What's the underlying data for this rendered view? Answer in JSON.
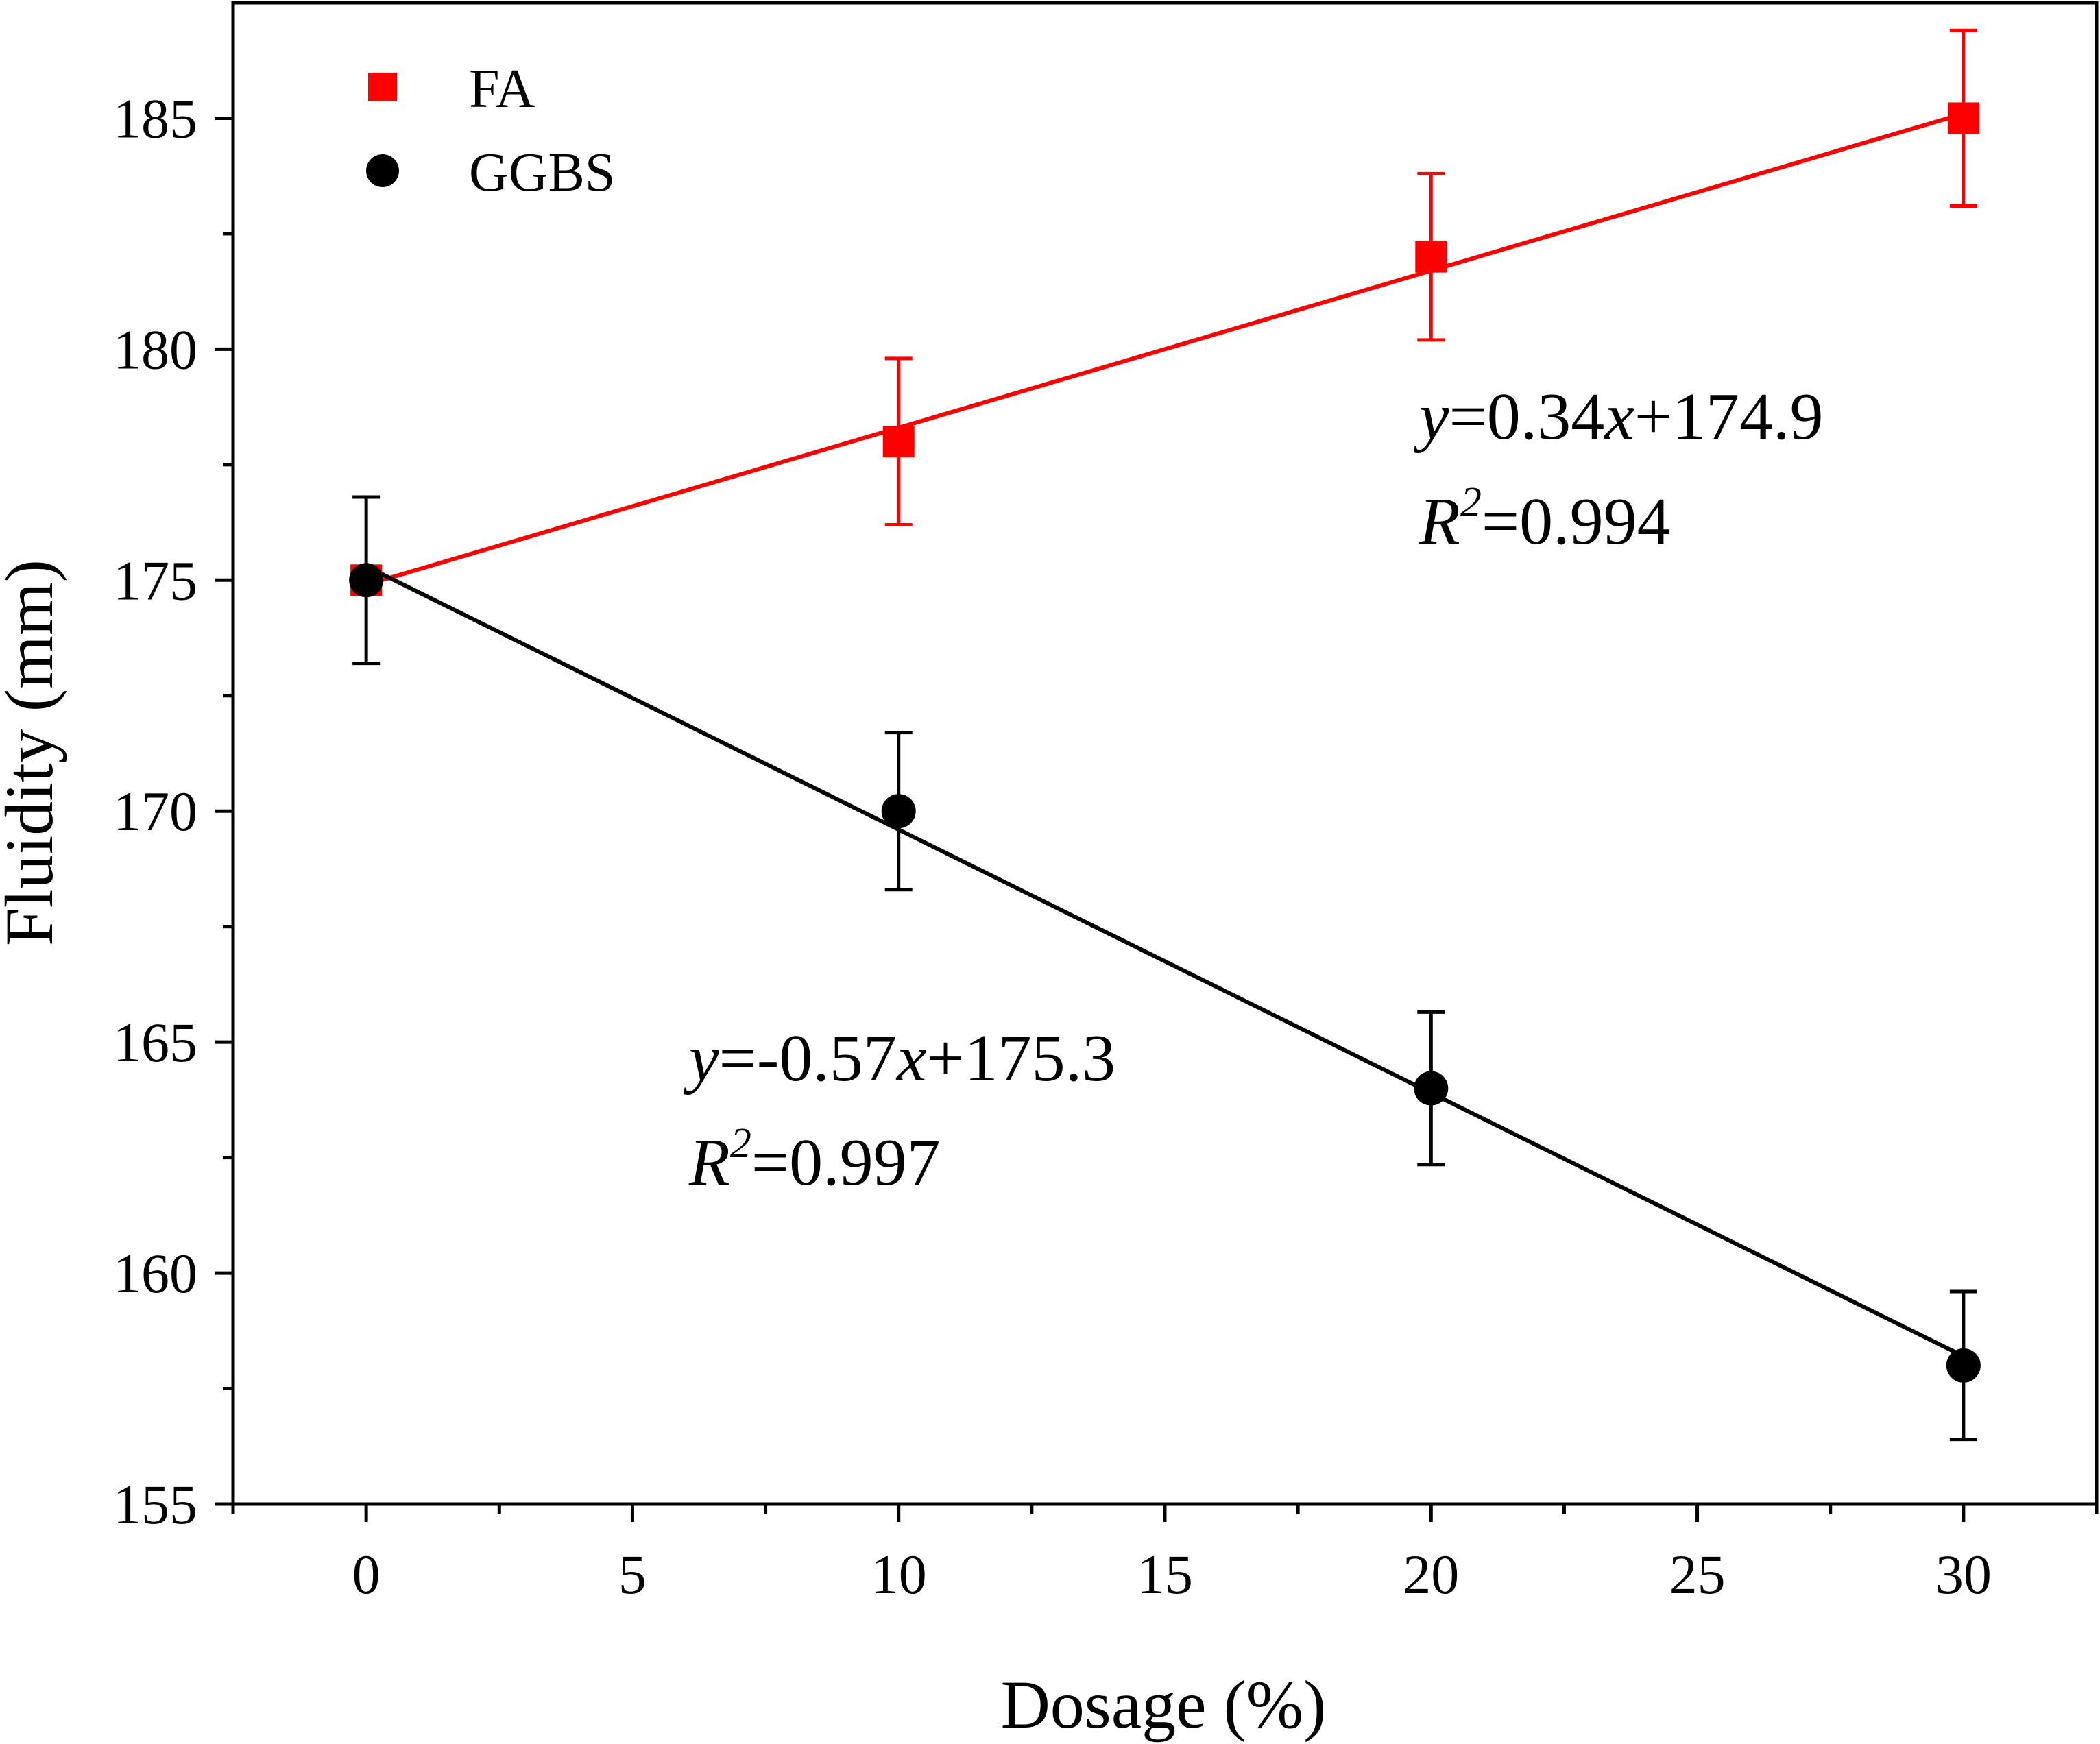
{
  "chart_data": {
    "type": "scatter",
    "xlabel": "Dosage (%)",
    "ylabel": "Fluidity (mm)",
    "xlim": [
      -2.5,
      32.5
    ],
    "ylim": [
      155,
      187.5
    ],
    "x_ticks": [
      "0",
      "5",
      "10",
      "15",
      "20",
      "25",
      "30"
    ],
    "y_ticks": [
      "155",
      "160",
      "165",
      "170",
      "175",
      "180",
      "185"
    ],
    "legend_placement": "top-left",
    "grid": false,
    "series": [
      {
        "name": "FA",
        "marker": "square",
        "color": "#ff0000",
        "x": [
          0,
          10,
          20,
          30
        ],
        "y": [
          175,
          178,
          182,
          185
        ],
        "error": [
          0,
          1.8,
          1.8,
          1.9
        ],
        "fit": {
          "slope": 0.34,
          "intercept": 174.9
        },
        "equation": {
          "y_var": "y",
          "eq1": "=0.34",
          "x_var": "x",
          "eq2": "+174.9"
        },
        "r2": {
          "r": "R",
          "sup": "2",
          "val": "=0.994"
        }
      },
      {
        "name": "GGBS",
        "marker": "circle",
        "color": "#000000",
        "x": [
          0,
          10,
          20,
          30
        ],
        "y": [
          175,
          170,
          164,
          158
        ],
        "error": [
          1.8,
          1.7,
          1.65,
          1.6
        ],
        "fit": {
          "slope": -0.57,
          "intercept": 175.3
        },
        "equation": {
          "y_var": "y",
          "eq1": "=-0.57",
          "x_var": "x",
          "eq2": "+175.3"
        },
        "r2": {
          "r": "R",
          "sup": "2",
          "val": "=0.997"
        }
      }
    ]
  }
}
